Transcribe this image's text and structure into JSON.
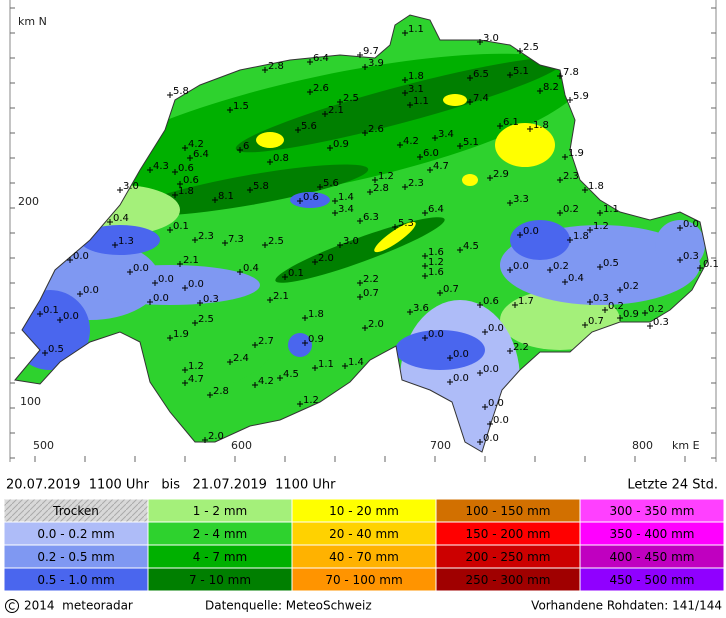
{
  "map": {
    "axis_labels": {
      "north": "km N",
      "y200": "200",
      "y100": "100",
      "x500": "500",
      "x600": "600",
      "x700": "700",
      "x800": "800",
      "east": "km E"
    },
    "stations": [
      "2.8",
      "6.4",
      "9.7",
      "3.9",
      "1.1",
      "3.0",
      "2.5",
      "7.8",
      "5.1",
      "6.5",
      "8.2",
      "5.9",
      "1.8",
      "3.1",
      "1.1",
      "7.4",
      "6.1",
      "1.8",
      "1.9",
      "5.8",
      "1.5",
      "2.6",
      "2.5",
      "2.1",
      "5.6",
      "2.6",
      "4.2",
      "6",
      "6.4",
      "0.9",
      "3.4",
      "5.1",
      "4.2",
      "6.0",
      "4.3",
      "0.6",
      "0.8",
      "4.7",
      "2.9",
      "2.3",
      "1.8",
      "3.0",
      "0.6",
      "1.8",
      "5.8",
      "5.6",
      "1.2",
      "2.8",
      "2.3",
      "8.1",
      "0.6",
      "1.4",
      "3.4",
      "3.3",
      "6.4",
      "6.3",
      "5.3",
      "0.2",
      "1.1",
      "1.2",
      "1.8",
      "0.4",
      "0.1",
      "2.3",
      "7.3",
      "2.5",
      "3.0",
      "1.6",
      "4.5",
      "0.0",
      "0.0",
      "1.3",
      "0.0",
      "2.1",
      "0.4",
      "0.1",
      "2.0",
      "1.2",
      "1.6",
      "0.0",
      "0.2",
      "0.5",
      "0.3",
      "0.1",
      "0.0",
      "0.0",
      "0.0",
      "2.2",
      "0.4",
      "0.2",
      "0.0",
      "0.0",
      "0.3",
      "2.1",
      "0.7",
      "0.7",
      "0.6",
      "1.7",
      "0.3",
      "0.2",
      "0.2",
      "0.1",
      "0.0",
      "3.6",
      "0.9",
      "2.5",
      "1.8",
      "2.0",
      "0.7",
      "0.3",
      "1.9",
      "0.0",
      "0.0",
      "2.7",
      "0.9",
      "0.5",
      "2.2",
      "0.0",
      "2.4",
      "1.2",
      "1.1",
      "1.4",
      "0.0",
      "0.0",
      "4.7",
      "4.5",
      "4.2",
      "2.8",
      "1.2",
      "0.0",
      "0.0",
      "2.0",
      "0.0"
    ]
  },
  "info": {
    "period": "20.07.2019  1100 Uhr   bis   21.07.2019  1100 Uhr",
    "last": "Letzte 24 Std."
  },
  "legend": {
    "items": [
      {
        "label": "Trocken",
        "color": "#c8c8c8"
      },
      {
        "label": "0.0 - 0.2 mm",
        "color": "#aebcf8"
      },
      {
        "label": "0.2 - 0.5 mm",
        "color": "#7f98f2"
      },
      {
        "label": "0.5 - 1.0 mm",
        "color": "#4a66ee"
      },
      {
        "label": "1 - 2 mm",
        "color": "#a4f07a"
      },
      {
        "label": "2 - 4 mm",
        "color": "#2ed22e"
      },
      {
        "label": "4 - 7 mm",
        "color": "#00b000"
      },
      {
        "label": "7 - 10 mm",
        "color": "#007f00"
      },
      {
        "label": "10 - 20 mm",
        "color": "#ffff00"
      },
      {
        "label": "20 - 40 mm",
        "color": "#ffd200"
      },
      {
        "label": "40 - 70 mm",
        "color": "#ffb200"
      },
      {
        "label": "70 - 100 mm",
        "color": "#ff9400"
      },
      {
        "label": "100 - 150 mm",
        "color": "#d27000"
      },
      {
        "label": "150 - 200 mm",
        "color": "#ff0000"
      },
      {
        "label": "200 - 250 mm",
        "color": "#cc0000"
      },
      {
        "label": "250 - 300 mm",
        "color": "#a00000"
      },
      {
        "label": "300 - 350 mm",
        "color": "#ff40ff"
      },
      {
        "label": "350 - 400 mm",
        "color": "#ff00ff"
      },
      {
        "label": "400 - 450 mm",
        "color": "#c000c0"
      },
      {
        "label": "450 - 500 mm",
        "color": "#9000ff"
      }
    ]
  },
  "footer": {
    "copyright": "2014  meteoradar",
    "source": "Datenquelle: MeteoSchweiz",
    "raw": "Vorhandene Rohdaten: 141/144"
  }
}
